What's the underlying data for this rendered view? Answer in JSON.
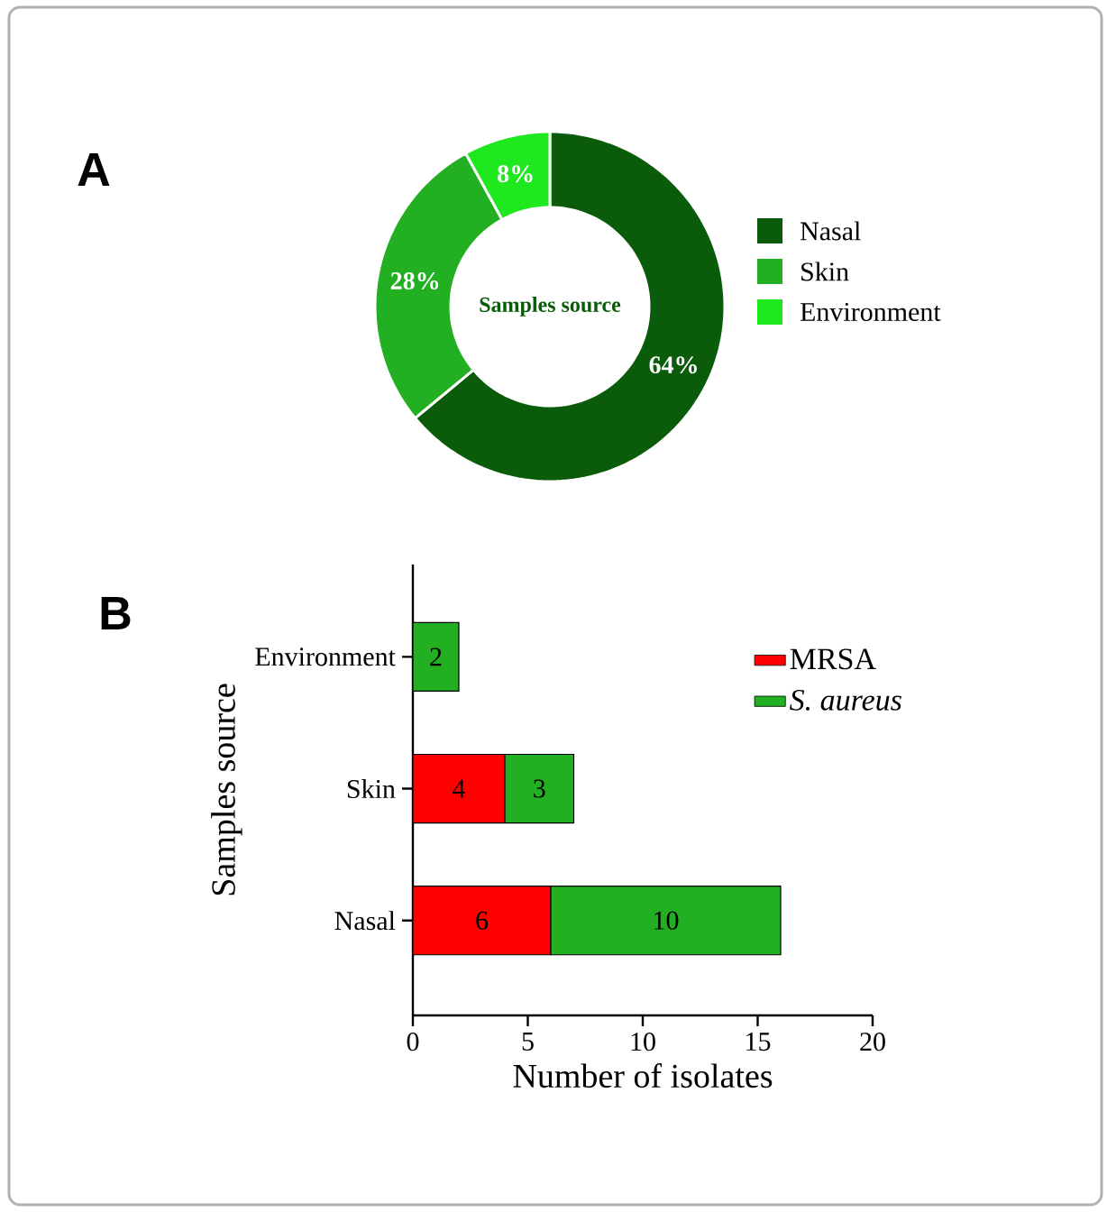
{
  "chart_data": [
    {
      "type": "donut",
      "title": "A",
      "categories": [
        "Nasal",
        "Skin",
        "Environment"
      ],
      "values": [
        64,
        28,
        8
      ],
      "colors": [
        "#0a5c0a",
        "#22b022",
        "#1fe81f"
      ],
      "value_labels": [
        "64%",
        "28%",
        "8%"
      ],
      "annotations": [
        "Samples source"
      ],
      "legend": "right"
    },
    {
      "type": "bar",
      "title": "B",
      "orientation": "horizontal",
      "stacked": true,
      "categories": [
        "Environment",
        "Skin",
        "Nasal"
      ],
      "series": [
        {
          "name": "MRSA",
          "color": "#ff0000",
          "values": [
            null,
            4,
            6
          ]
        },
        {
          "name": "*S. aureus*",
          "color": "#22b022",
          "values": [
            2,
            3,
            10
          ]
        }
      ],
      "xlim": [
        0,
        20
      ],
      "xticks": [
        0,
        5,
        10,
        15,
        20
      ],
      "xlabel": "Number of isolates",
      "ylabel": "Samples source",
      "data_labels": true,
      "legend": "top right"
    }
  ]
}
